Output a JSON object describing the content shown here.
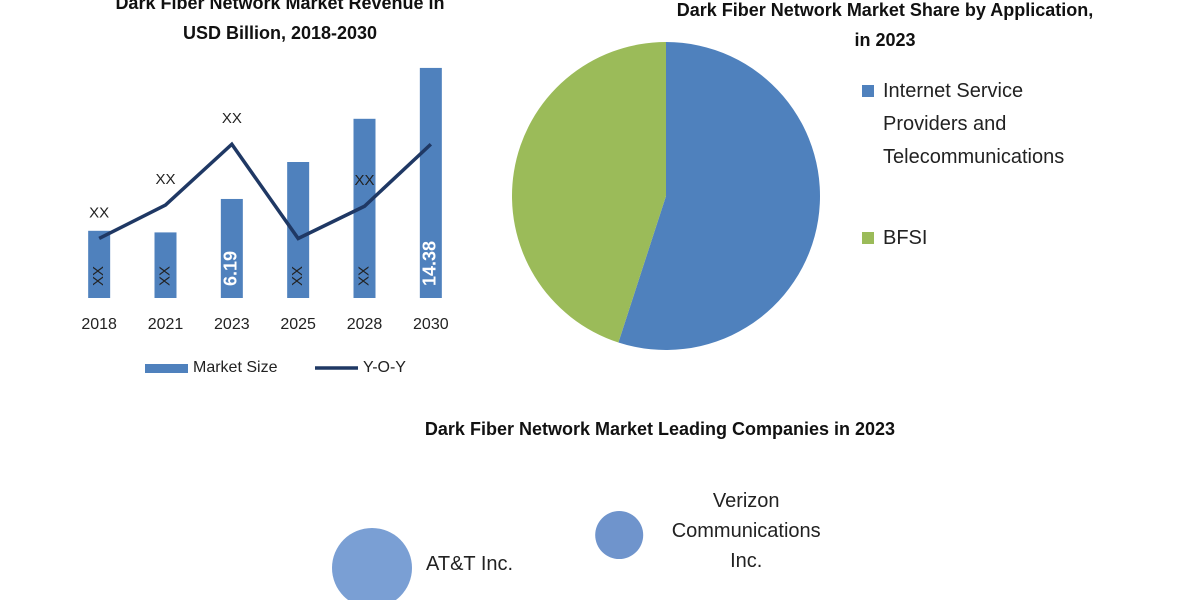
{
  "chart_data": [
    {
      "type": "bar",
      "title": "Dark Fiber Network Market Revenue in USD Billion, 2018-2030",
      "categories": [
        "2018",
        "2021",
        "2023",
        "2025",
        "2028",
        "2030"
      ],
      "ylim": [
        0,
        15.5
      ],
      "y2lim": [
        0,
        10
      ],
      "series": [
        {
          "name": "Market Size",
          "color": "#4f81bd",
          "values": [
            4.2,
            4.1,
            6.19,
            8.5,
            11.2,
            14.38
          ],
          "value_labels": [
            "XX",
            "XX",
            "6.19",
            "XX",
            "XX",
            "14.38"
          ]
        },
        {
          "name": "Y-O-Y",
          "type": "line",
          "axis": "y2",
          "color": "#1f3864",
          "values": [
            2.4,
            3.75,
            6.2,
            2.4,
            3.7,
            6.2
          ],
          "value_labels": [
            "XX",
            "XX",
            "XX",
            null,
            "XX",
            null
          ]
        }
      ]
    },
    {
      "type": "pie",
      "title": "Dark Fiber Network Market Share by Application, in 2023",
      "categories": [
        "Internet Service Providers and Telecommunications",
        "BFSI"
      ],
      "values": [
        55,
        45
      ],
      "colors": [
        "#4f81bd",
        "#9bbb59"
      ]
    },
    {
      "type": "bubble",
      "title": "Dark Fiber Network Market Leading Companies in 2023",
      "categories": [
        "AT&T Inc.",
        "Verizon Communications Inc."
      ],
      "xlim": [
        0,
        100
      ],
      "ylim": [
        0,
        100
      ],
      "x": [
        21.5,
        52.4
      ],
      "y": [
        22.9,
        46.4
      ],
      "sizes": [
        40,
        24
      ],
      "colors": [
        "#7a9fd4",
        "#6f94cc"
      ]
    }
  ]
}
